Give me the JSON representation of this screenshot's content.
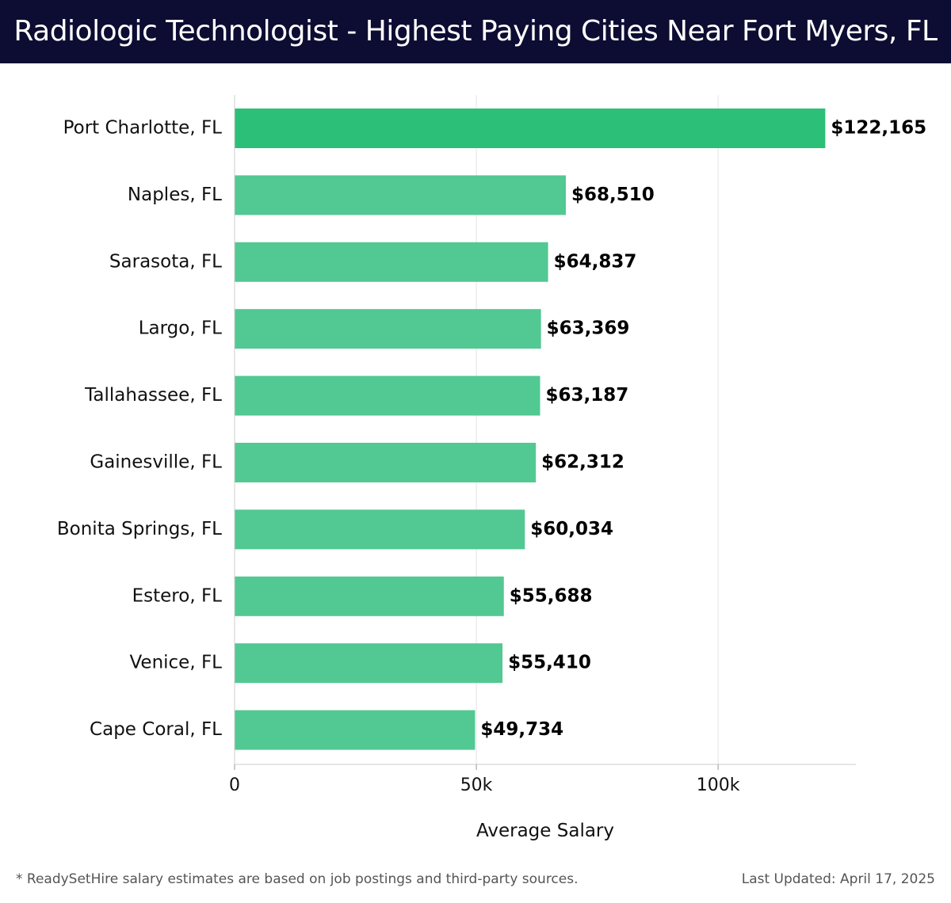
{
  "header": {
    "title": "Radiologic Technologist - Highest Paying Cities Near Fort Myers, FL"
  },
  "chart_data": {
    "type": "bar",
    "orientation": "horizontal",
    "title": "Radiologic Technologist - Highest Paying Cities Near Fort Myers, FL",
    "xlabel": "Average Salary",
    "ylabel": "",
    "xlim": [
      0,
      128500
    ],
    "xticks": [
      0,
      50000,
      100000
    ],
    "xtick_labels": [
      "0",
      "50k",
      "100k"
    ],
    "grid": true,
    "categories": [
      "Port Charlotte, FL",
      "Naples, FL",
      "Sarasota, FL",
      "Largo, FL",
      "Tallahassee, FL",
      "Gainesville, FL",
      "Bonita Springs, FL",
      "Estero, FL",
      "Venice, FL",
      "Cape Coral, FL"
    ],
    "values": [
      122165,
      68510,
      64837,
      63369,
      63187,
      62312,
      60034,
      55688,
      55410,
      49734
    ],
    "value_labels": [
      "$122,165",
      "$68,510",
      "$64,837",
      "$63,369",
      "$63,187",
      "$62,312",
      "$60,034",
      "$55,688",
      "$55,410",
      "$49,734"
    ],
    "colors": {
      "highlight": "#2bbf77",
      "bar": "#52c892",
      "grid": "#e3e3e3"
    }
  },
  "footer": {
    "note": "* ReadySetHire salary estimates are based on job postings and third-party sources.",
    "updated": "Last Updated: April 17, 2025"
  }
}
